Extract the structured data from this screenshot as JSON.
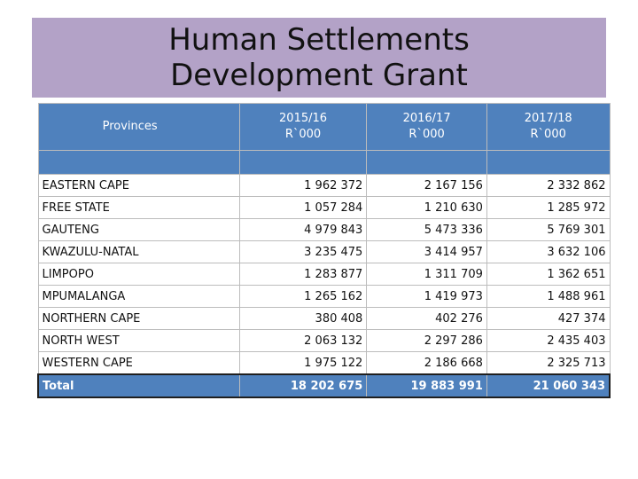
{
  "title": "Human Settlements Development Grant",
  "table": {
    "headers": {
      "provinces": "Provinces",
      "years": [
        {
          "year": "2015/16",
          "unit": "R`000"
        },
        {
          "year": "2016/17",
          "unit": "R`000"
        },
        {
          "year": "2017/18",
          "unit": "R`000"
        }
      ]
    },
    "rows": [
      {
        "province": "EASTERN CAPE",
        "values": [
          "1 962 372",
          "2 167 156",
          "2 332 862"
        ]
      },
      {
        "province": "FREE STATE",
        "values": [
          "1 057 284",
          "1 210 630",
          "1 285 972"
        ]
      },
      {
        "province": "GAUTENG",
        "values": [
          "4 979 843",
          "5 473 336",
          "5 769 301"
        ]
      },
      {
        "province": "KWAZULU-NATAL",
        "values": [
          "3 235 475",
          "3 414 957",
          "3 632 106"
        ]
      },
      {
        "province": "LIMPOPO",
        "values": [
          "1 283 877",
          "1 311 709",
          "1 362 651"
        ]
      },
      {
        "province": "MPUMALANGA",
        "values": [
          "1 265 162",
          "1 419 973",
          "1 488 961"
        ]
      },
      {
        "province": "NORTHERN CAPE",
        "values": [
          "380 408",
          "402 276",
          "427 374"
        ]
      },
      {
        "province": "NORTH WEST",
        "values": [
          "2 063 132",
          "2 297 286",
          "2 435 403"
        ]
      },
      {
        "province": "WESTERN CAPE",
        "values": [
          "1 975 122",
          "2 186 668",
          "2 325 713"
        ]
      }
    ],
    "total": {
      "label": "Total",
      "values": [
        "18 202 675",
        "19 883 991",
        "21 060 343"
      ]
    }
  }
}
